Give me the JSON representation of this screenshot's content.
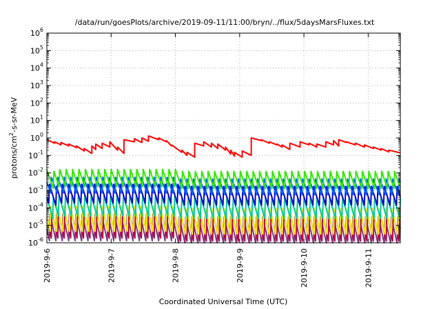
{
  "chart_data": {
    "type": "line",
    "title": "/data/run/goesPlots/archive/2019-09-11/11:00/bryn/../flux/5daysMarsFluxes.txt",
    "xlabel": "Coordinated Universal Time (UTC)",
    "ylabel": "protons/cm2-s-sr-MeV",
    "ylabel_parts": {
      "prefix": "protons/cm",
      "sup": "2",
      "suffix": "-s-sr-MeV"
    },
    "y_scale": "log",
    "ylim_exp": [
      -6,
      6
    ],
    "xlim_days": [
      0,
      5.5
    ],
    "grid": true,
    "legend": "none",
    "y_tick_labels": [
      {
        "base": "10",
        "exp": "-6",
        "value_exp": -6
      },
      {
        "base": "10",
        "exp": "-5",
        "value_exp": -5
      },
      {
        "base": "10",
        "exp": "-4",
        "value_exp": -4
      },
      {
        "base": "10",
        "exp": "-3",
        "value_exp": -3
      },
      {
        "base": "10",
        "exp": "-2",
        "value_exp": -2
      },
      {
        "base": "10",
        "exp": "-1",
        "value_exp": -1
      },
      {
        "base": "10",
        "exp": "0",
        "value_exp": 0
      },
      {
        "base": "10",
        "exp": "1",
        "value_exp": 1
      },
      {
        "base": "10",
        "exp": "2",
        "value_exp": 2
      },
      {
        "base": "10",
        "exp": "3",
        "value_exp": 3
      },
      {
        "base": "10",
        "exp": "4",
        "value_exp": 4
      },
      {
        "base": "10",
        "exp": "5",
        "value_exp": 5
      },
      {
        "base": "10",
        "exp": "6",
        "value_exp": 6
      }
    ],
    "x_tick_labels": [
      {
        "label": "2019-9-6",
        "day": 0
      },
      {
        "label": "2019-9-7",
        "day": 1
      },
      {
        "label": "2019-9-8",
        "day": 2
      },
      {
        "label": "2019-9-9",
        "day": 3
      },
      {
        "label": "2019-9-10",
        "day": 4
      },
      {
        "label": "2019-9-11",
        "day": 5
      }
    ],
    "series": [
      {
        "color": "#ff0000",
        "x": [
          0,
          0.12,
          0.12,
          0.22,
          0.22,
          0.34,
          0.34,
          0.46,
          0.46,
          0.58,
          0.58,
          0.7,
          0.7,
          0.76,
          0.76,
          0.86,
          0.86,
          0.98,
          0.98,
          1.1,
          1.1,
          1.2,
          1.2,
          1.36,
          1.36,
          1.48,
          1.48,
          1.58,
          1.58,
          1.74,
          1.74,
          1.86,
          1.86,
          1.94,
          1.94,
          2.1,
          2.1,
          2.18,
          2.18,
          2.3,
          2.3,
          2.44,
          2.44,
          2.56,
          2.56,
          2.66,
          2.66,
          2.78,
          2.78,
          2.86,
          2.86,
          2.92,
          2.92,
          3.04,
          3.04,
          3.18,
          3.18,
          3.34,
          3.34,
          3.46,
          3.46,
          3.58,
          3.58,
          3.66,
          3.66,
          3.78,
          3.78,
          3.94,
          3.94,
          4.08,
          4.08,
          4.2,
          4.2,
          4.34,
          4.34,
          4.46,
          4.46,
          4.54,
          4.54,
          4.66,
          4.66,
          4.8,
          4.8,
          4.94,
          4.94,
          5.08,
          5.08,
          5.2,
          5.2,
          5.32,
          5.32,
          5.5
        ],
        "y": [
          0.8,
          0.5,
          0.6,
          0.4,
          0.55,
          0.35,
          0.45,
          0.28,
          0.35,
          0.18,
          0.25,
          0.13,
          0.35,
          0.22,
          0.45,
          0.25,
          0.5,
          0.3,
          0.6,
          0.2,
          0.3,
          0.13,
          0.8,
          0.6,
          0.9,
          0.55,
          1.0,
          0.65,
          1.3,
          0.8,
          1.0,
          0.6,
          0.7,
          0.35,
          0.4,
          0.15,
          0.2,
          0.1,
          0.15,
          0.08,
          0.5,
          0.35,
          0.6,
          0.3,
          0.5,
          0.25,
          0.45,
          0.2,
          0.3,
          0.12,
          0.2,
          0.09,
          0.15,
          0.08,
          0.18,
          0.1,
          1.0,
          0.7,
          0.8,
          0.5,
          0.6,
          0.4,
          0.45,
          0.3,
          0.4,
          0.22,
          0.5,
          0.3,
          0.6,
          0.4,
          0.5,
          0.3,
          0.45,
          0.3,
          0.6,
          0.4,
          0.7,
          0.35,
          0.8,
          0.55,
          0.6,
          0.4,
          0.5,
          0.3,
          0.4,
          0.25,
          0.3,
          0.2,
          0.25,
          0.16,
          0.2,
          0.14
        ]
      },
      {
        "color": "#2ee800",
        "period": 0.1,
        "phase": 0.0,
        "center_log": -2.35,
        "amp_log": 0.55
      },
      {
        "color": "#0066ff",
        "period": 0.1,
        "phase": 0.03,
        "center_log": -2.75,
        "amp_log": 0.5
      },
      {
        "color": "#0000d0",
        "period": 0.1,
        "phase": 0.06,
        "center_log": -3.25,
        "amp_log": 0.6
      },
      {
        "color": "#00c8a0",
        "period": 0.1,
        "phase": 0.01,
        "center_log": -3.95,
        "amp_log": 0.65
      },
      {
        "color": "#f0f000",
        "period": 0.1,
        "phase": 0.04,
        "center_log": -4.7,
        "amp_log": 0.8
      },
      {
        "color": "#c00040",
        "period": 0.1,
        "phase": 0.02,
        "center_log": -5.05,
        "amp_log": 0.85
      },
      {
        "color": "#7a3a80",
        "period": 0.1,
        "phase": 0.05,
        "center_log": -5.2,
        "amp_log": 0.85
      }
    ]
  }
}
